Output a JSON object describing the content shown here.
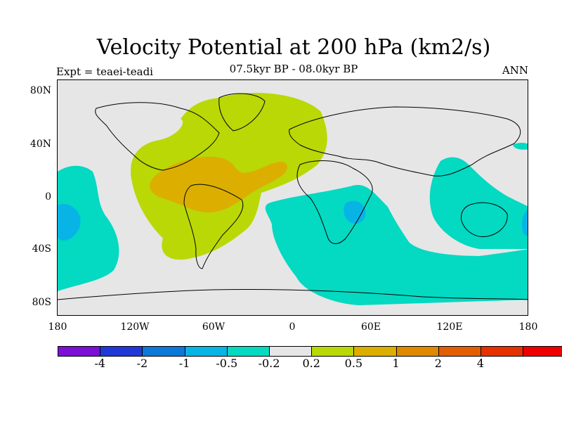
{
  "title": "Velocity Potential at 200 hPa (km2/s)",
  "subtitle": "07.5kyr BP - 08.0kyr BP",
  "left_label": "Expt = teaei-teadi",
  "right_label": "ANN",
  "lat_labels": [
    "80N",
    "40N",
    "0",
    "40S",
    "80S"
  ],
  "lon_labels": [
    "180",
    "120W",
    "60W",
    "0",
    "60E",
    "120E",
    "180"
  ],
  "colorbar": {
    "colors": [
      "#7b11d6",
      "#2038d8",
      "#0c78d8",
      "#08b4e6",
      "#04d9c2",
      "#e6e6e6",
      "#b9d806",
      "#dcae00",
      "#e08800",
      "#e25e00",
      "#e63000",
      "#ee0000"
    ],
    "labels": [
      "-4",
      "-2",
      "-1",
      "-0.5",
      "-0.2",
      "0.2",
      "0.5",
      "1",
      "2",
      "4"
    ]
  },
  "map": {
    "background": "#e6e6e6",
    "positive_light": "#b9d806",
    "positive_mid": "#dcae00",
    "negative_light": "#04d9c2",
    "negative_mid": "#08b4e6"
  }
}
